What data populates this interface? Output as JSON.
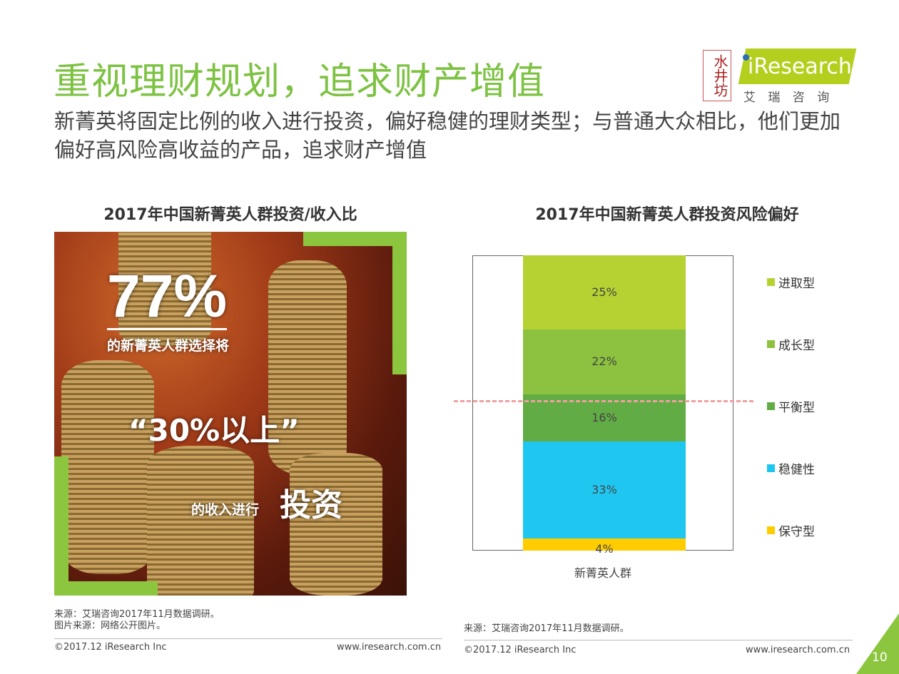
{
  "header": {
    "title": "重视理财规划，追求财产增值",
    "subtitle": "新菁英将固定比例的收入进行投资，偏好稳健的理财类型；与普通大众相比，他们更加偏好高风险高收益的产品，追求财产增值"
  },
  "logo": {
    "brand": "iResearch",
    "cn": "艾 瑞 咨 询",
    "sponsor": "水井坊"
  },
  "left": {
    "title": "2017年中国新菁英人群投资/收入比",
    "big": "77%",
    "line1": "的新菁英人群选择将",
    "quote": "“30%以上”",
    "line2a": "的收入进行",
    "line2b": "投资",
    "source": "来源：艾瑞咨询2017年11月数据调研。",
    "image_source": "图片来源：网络公开图片。"
  },
  "chart_data": {
    "type": "bar",
    "stacked": true,
    "title": "2017年中国新菁英人群投资风险偏好",
    "categories": [
      "新菁英人群"
    ],
    "series": [
      {
        "name": "保守型",
        "values": [
          4
        ],
        "color": "#ffcc00"
      },
      {
        "name": "稳健性",
        "values": [
          33
        ],
        "color": "#1fc7f0"
      },
      {
        "name": "平衡型",
        "values": [
          16
        ],
        "color": "#62ac45"
      },
      {
        "name": "成长型",
        "values": [
          22
        ],
        "color": "#8cc23f"
      },
      {
        "name": "进取型",
        "values": [
          25
        ],
        "color": "#b5d232"
      }
    ],
    "ylim": [
      0,
      100
    ],
    "reference_line": {
      "value": 51,
      "style": "dashed",
      "color": "#f0a0a0"
    },
    "legend": "right"
  },
  "right": {
    "source": "来源：艾瑞咨询2017年11月数据调研。"
  },
  "footer": {
    "copyright": "©2017.12 iResearch Inc",
    "url": "www.iresearch.com.cn",
    "page": "10"
  }
}
